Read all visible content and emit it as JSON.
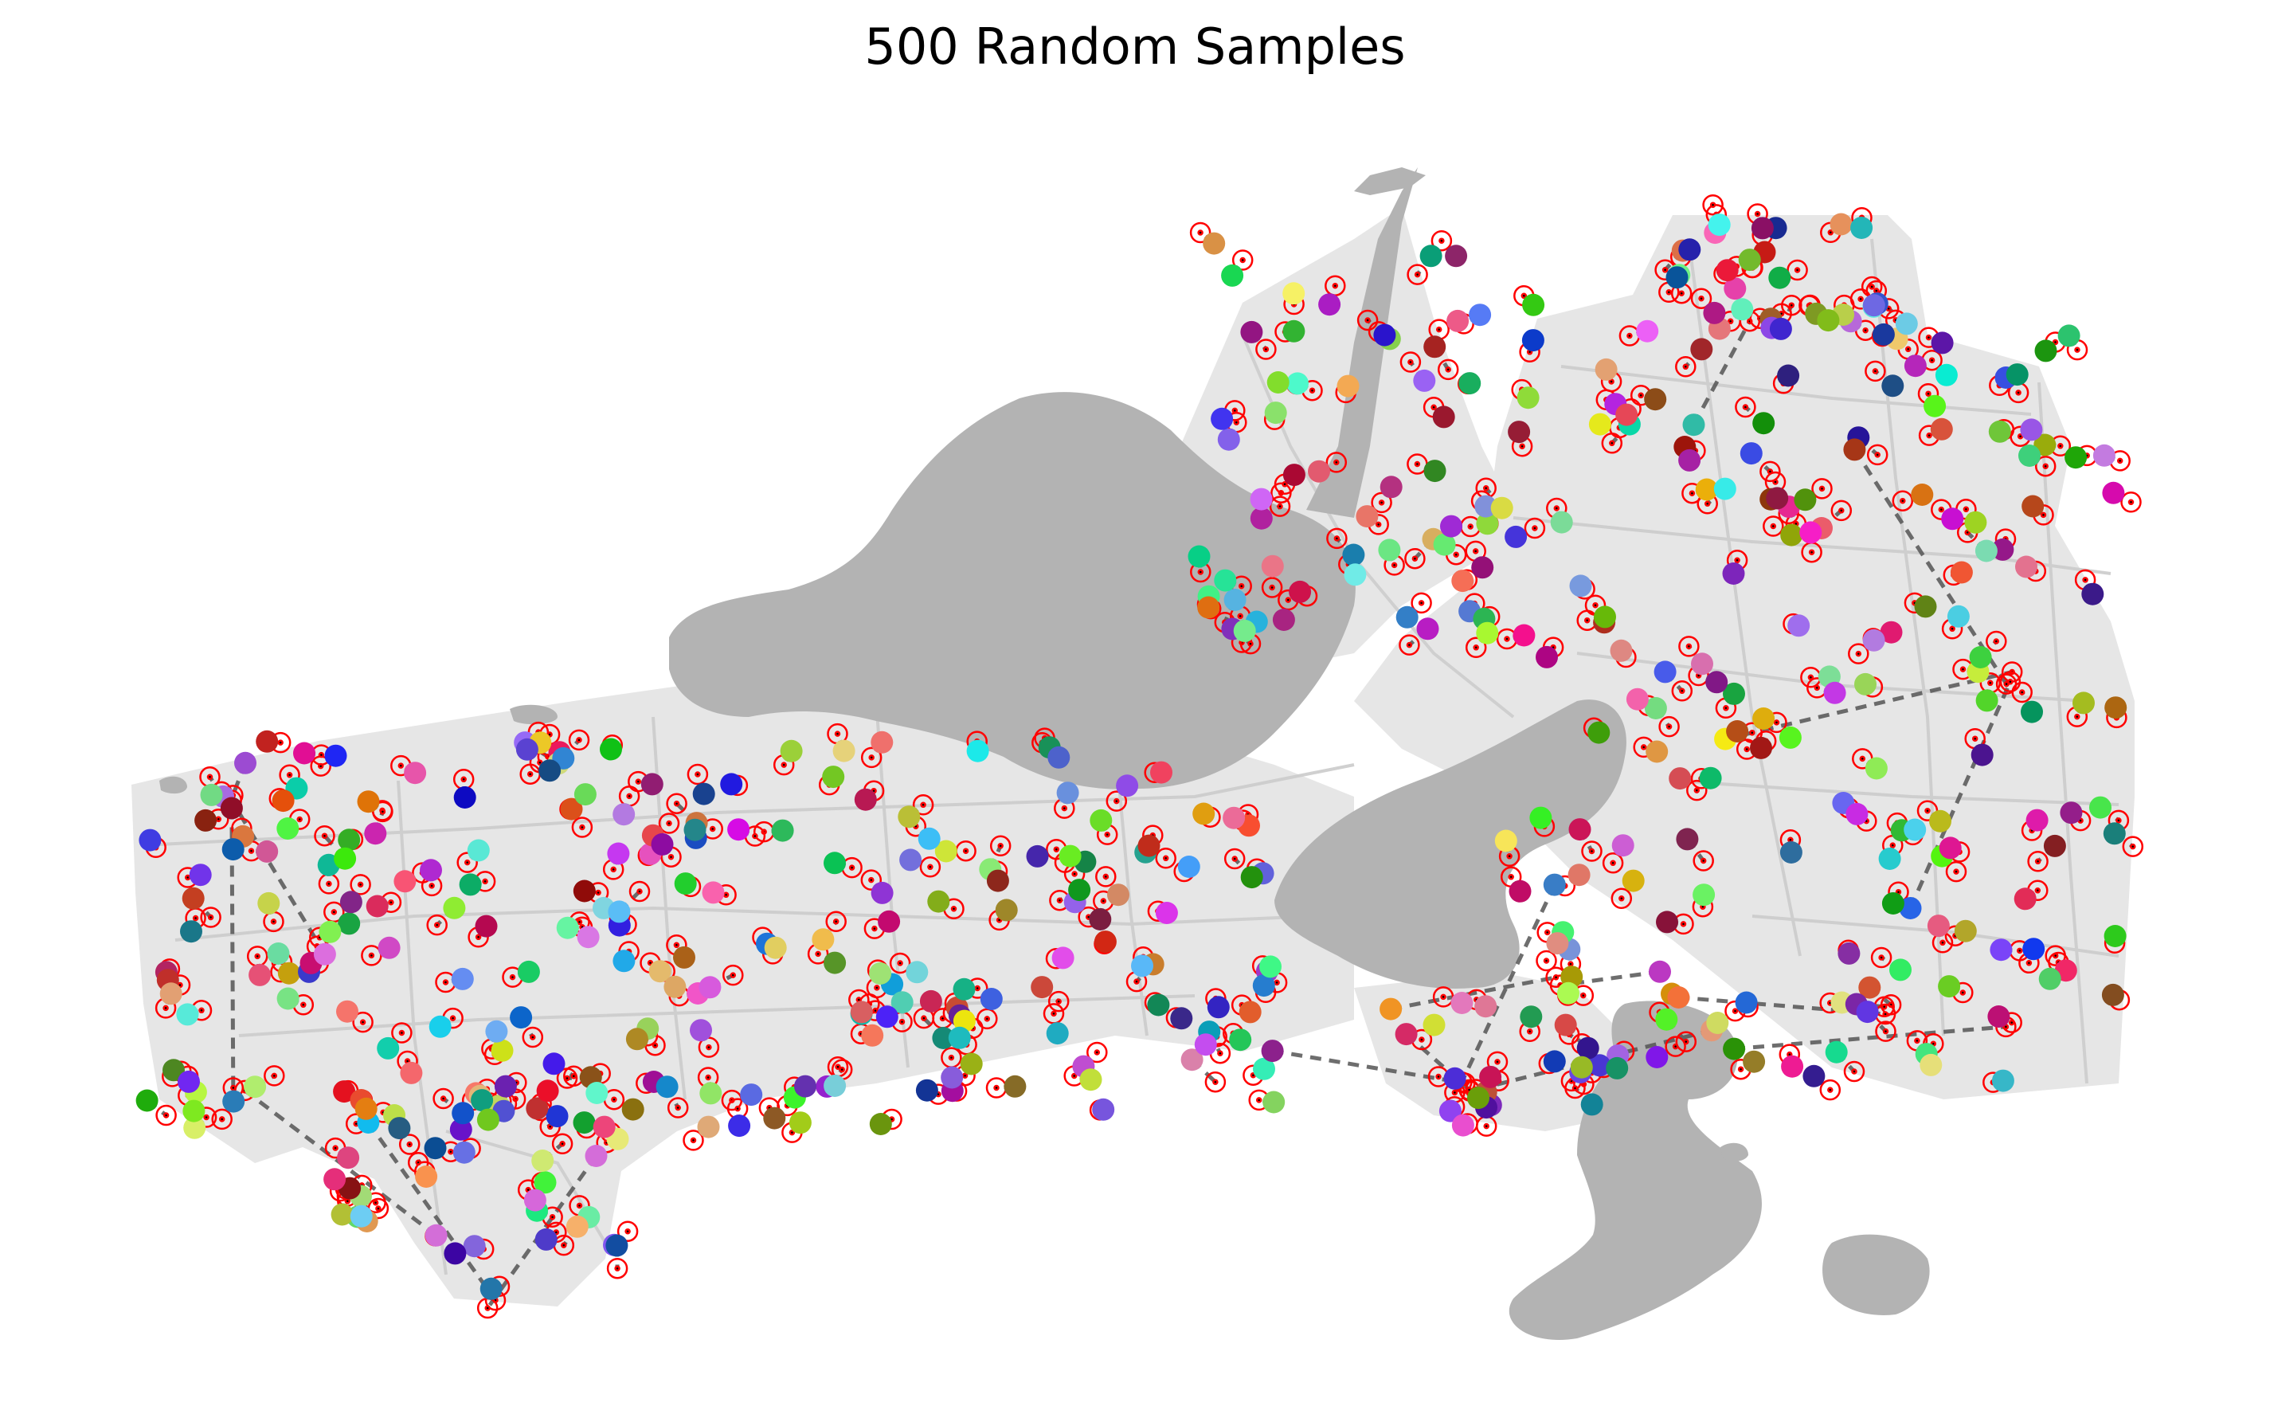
{
  "title": "500 Random Samples",
  "colors": {
    "background": "#ffffff",
    "land": "#e6e6e6",
    "roads": "#cccccc",
    "water": "#b3b3b3",
    "snap_link": "#555555",
    "snap_target": "#ff0000"
  },
  "legend": "none",
  "sample_count": 500
}
